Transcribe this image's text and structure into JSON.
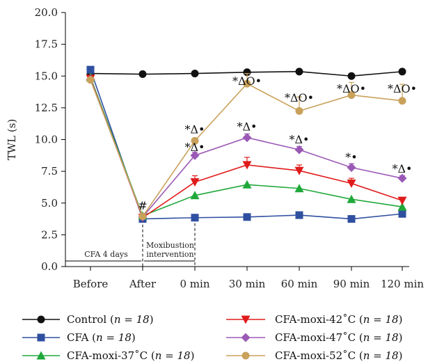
{
  "chart_data": {
    "type": "line",
    "title": "",
    "xlabel": "",
    "ylabel": "TWL (s)",
    "ylim": [
      0,
      20
    ],
    "yticks": [
      "0.0",
      "2.5",
      "5.0",
      "7.5",
      "10.0",
      "12.5",
      "15.0",
      "17.5",
      "20.0"
    ],
    "categories": [
      "Before",
      "After",
      "0 min",
      "30 min",
      "60 min",
      "90 min",
      "120 min"
    ],
    "series": [
      {
        "name": "Control",
        "n_text": "n = 18",
        "color": "#111111",
        "marker": "circle",
        "values": [
          15.2,
          15.15,
          15.2,
          15.3,
          15.35,
          15.0,
          15.35
        ],
        "errors": [
          0,
          0,
          0,
          0,
          0,
          0,
          0
        ]
      },
      {
        "name": "CFA",
        "n_text": "n = 18",
        "color": "#2f4fa0",
        "marker": "square",
        "values": [
          15.5,
          3.75,
          3.85,
          3.9,
          4.05,
          3.75,
          4.15
        ],
        "errors": [
          0,
          0,
          0,
          0,
          0,
          0,
          0
        ]
      },
      {
        "name": "CFA-moxi-37˚C",
        "n_text": "n = 18",
        "color": "#1fa83a",
        "marker": "triangle-up",
        "values": [
          14.9,
          4.0,
          5.6,
          6.45,
          6.15,
          5.3,
          4.7
        ],
        "errors": [
          0,
          0,
          0,
          0,
          0,
          0,
          0
        ]
      },
      {
        "name": "CFA-moxi-42˚C",
        "n_text": "n = 18",
        "color": "#e01b1b",
        "marker": "triangle-down",
        "values": [
          14.8,
          3.85,
          6.65,
          8.0,
          7.55,
          6.55,
          5.2
        ],
        "errors": [
          0,
          0,
          0.5,
          0.6,
          0.45,
          0.4,
          0
        ]
      },
      {
        "name": "CFA-moxi-47˚C",
        "n_text": "n = 18",
        "color": "#9b59b6",
        "marker": "diamond",
        "values": [
          14.75,
          3.9,
          8.75,
          10.15,
          9.2,
          7.8,
          6.95
        ],
        "errors": [
          0,
          0,
          0.25,
          0.3,
          0.25,
          0.3,
          0.2
        ]
      },
      {
        "name": "CFA-moxi-52˚C",
        "n_text": "n = 18",
        "color": "#c9a15a",
        "marker": "circle",
        "values": [
          14.7,
          3.95,
          9.9,
          14.4,
          12.25,
          13.5,
          13.05
        ],
        "errors": [
          0,
          0,
          0,
          0.8,
          1.1,
          1.0,
          1.3
        ]
      }
    ],
    "annotations": [
      {
        "text": "#",
        "x": "After",
        "y": 4.5
      },
      {
        "text": "*Δ•",
        "x": "0 min",
        "y": 10.5
      },
      {
        "text": "*Δ•",
        "x": "0 min",
        "y": 9.1
      },
      {
        "text": "*Δ•",
        "x": "30 min",
        "y": 10.7
      },
      {
        "text": "*Δ•",
        "x": "60 min",
        "y": 9.7
      },
      {
        "text": "*•",
        "x": "90 min",
        "y": 8.3
      },
      {
        "text": "*Δ•",
        "x": "120 min",
        "y": 7.4
      },
      {
        "text": "*ΔO•",
        "x": "30 min",
        "y": 14.3
      },
      {
        "text": "*ΔO•",
        "x": "60 min",
        "y": 13.0
      },
      {
        "text": "*ΔO•",
        "x": "90 min",
        "y": 13.7
      },
      {
        "text": "*ΔO•",
        "x": "120 min",
        "y": 13.7
      }
    ],
    "phases": [
      {
        "lines": [
          "CFA 4 days"
        ]
      },
      {
        "lines": [
          "Moxibustion",
          "intervention"
        ]
      }
    ],
    "legend_position": "bottom",
    "grid": false
  }
}
